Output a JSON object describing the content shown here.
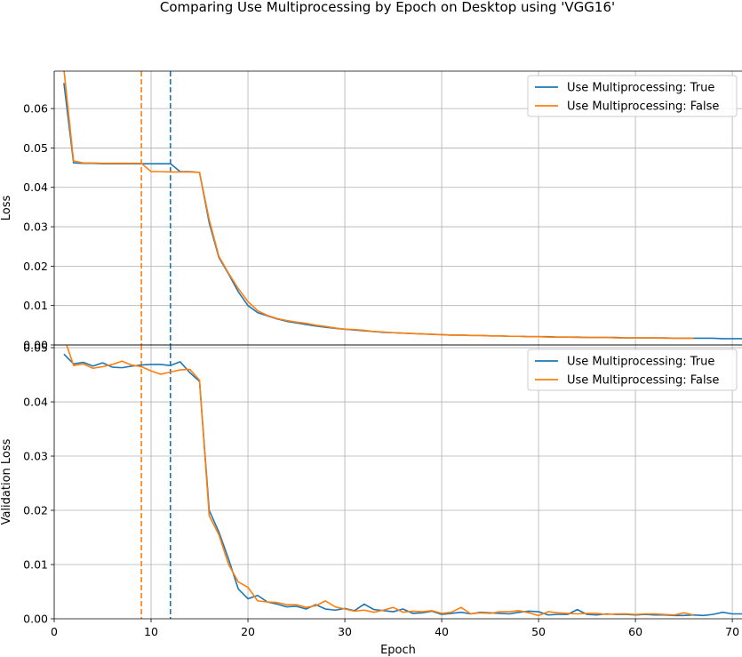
{
  "chart_data": {
    "type": "line",
    "title": "Comparing Use Multiprocessing by Epoch on Desktop using 'VGG16'",
    "xlabel": "Epoch",
    "xlim": [
      0,
      71
    ],
    "xticks": [
      0,
      10,
      20,
      30,
      40,
      50,
      60,
      70
    ],
    "grid": true,
    "colors": {
      "true": "#1f77b4",
      "false": "#ff7f0e"
    },
    "vlines": [
      {
        "x": 12,
        "series": "Use Multiprocessing: True",
        "style": "dashed",
        "color": "#1f77b4"
      },
      {
        "x": 9,
        "series": "Use Multiprocessing: False",
        "style": "dashed",
        "color": "#ff7f0e"
      }
    ],
    "panels": [
      {
        "ylabel": "Loss",
        "ylim": [
          0,
          0.0695
        ],
        "yticks": [
          0.0,
          0.01,
          0.02,
          0.03,
          0.04,
          0.05,
          0.06
        ],
        "legend_position": "top-right",
        "series": [
          {
            "name": "Use Multiprocessing: True",
            "x": [
              1,
              2,
              3,
              4,
              5,
              6,
              7,
              8,
              9,
              10,
              11,
              12,
              13,
              14,
              15,
              16,
              17,
              18,
              19,
              20,
              21,
              22,
              23,
              24,
              25,
              26,
              27,
              28,
              29,
              30,
              31,
              32,
              33,
              34,
              35,
              36,
              37,
              38,
              39,
              40,
              41,
              42,
              43,
              44,
              45,
              46,
              47,
              48,
              49,
              50,
              51,
              52,
              53,
              54,
              55,
              56,
              57,
              58,
              59,
              60,
              61,
              62,
              63,
              64,
              65,
              66,
              67,
              68,
              69,
              70,
              71
            ],
            "y": [
              0.0665,
              0.0462,
              0.0461,
              0.0461,
              0.046,
              0.046,
              0.046,
              0.046,
              0.046,
              0.046,
              0.046,
              0.046,
              0.044,
              0.044,
              0.0438,
              0.031,
              0.0222,
              0.018,
              0.0135,
              0.01,
              0.0082,
              0.0074,
              0.0066,
              0.006,
              0.0056,
              0.0052,
              0.0048,
              0.0045,
              0.0042,
              0.004,
              0.0038,
              0.0036,
              0.0034,
              0.0032,
              0.0031,
              0.003,
              0.0029,
              0.0028,
              0.0027,
              0.0026,
              0.0025,
              0.0025,
              0.0024,
              0.0024,
              0.0023,
              0.0023,
              0.0022,
              0.0022,
              0.0021,
              0.0021,
              0.0021,
              0.002,
              0.002,
              0.002,
              0.0019,
              0.0019,
              0.0019,
              0.0019,
              0.0018,
              0.0018,
              0.0018,
              0.0018,
              0.0018,
              0.0017,
              0.0017,
              0.0017,
              0.0017,
              0.0017,
              0.0016,
              0.0016,
              0.0016
            ]
          },
          {
            "name": "Use Multiprocessing: False",
            "x": [
              1,
              2,
              3,
              4,
              5,
              6,
              7,
              8,
              9,
              10,
              11,
              12,
              13,
              14,
              15,
              16,
              17,
              18,
              19,
              20,
              21,
              22,
              23,
              24,
              25,
              26,
              27,
              28,
              29,
              30,
              31,
              32,
              33,
              34,
              35,
              36,
              37,
              38,
              39,
              40,
              41,
              42,
              43,
              44,
              45,
              46,
              47,
              48,
              49,
              50,
              51,
              52,
              53,
              54,
              55,
              56,
              57,
              58,
              59,
              60,
              61,
              62,
              63,
              64,
              65,
              66
            ],
            "y": [
              0.07,
              0.0467,
              0.0462,
              0.0462,
              0.0461,
              0.0461,
              0.0461,
              0.0461,
              0.0461,
              0.044,
              0.044,
              0.0439,
              0.0439,
              0.0439,
              0.0438,
              0.0318,
              0.0225,
              0.0182,
              0.0143,
              0.011,
              0.0087,
              0.0075,
              0.0067,
              0.0062,
              0.0058,
              0.0055,
              0.005,
              0.0047,
              0.0043,
              0.004,
              0.0039,
              0.0037,
              0.0034,
              0.0033,
              0.0031,
              0.003,
              0.0029,
              0.0028,
              0.0027,
              0.0026,
              0.0025,
              0.0025,
              0.0024,
              0.0024,
              0.0023,
              0.0023,
              0.0022,
              0.0022,
              0.0021,
              0.0021,
              0.002,
              0.002,
              0.002,
              0.0019,
              0.0019,
              0.0019,
              0.0019,
              0.0018,
              0.0018,
              0.0018,
              0.0018,
              0.0018,
              0.0017,
              0.0017,
              0.0017,
              0.0017
            ]
          }
        ]
      },
      {
        "ylabel": "Validation Loss",
        "ylim": [
          0,
          0.0505
        ],
        "yticks": [
          0.0,
          0.01,
          0.02,
          0.03,
          0.04,
          0.05
        ],
        "legend_position": "top-right",
        "series": [
          {
            "name": "Use Multiprocessing: True",
            "x": [
              1,
              2,
              3,
              4,
              5,
              6,
              7,
              8,
              9,
              10,
              11,
              12,
              13,
              14,
              15,
              16,
              17,
              18,
              19,
              20,
              21,
              22,
              23,
              24,
              25,
              26,
              27,
              28,
              29,
              30,
              31,
              32,
              33,
              34,
              35,
              36,
              37,
              38,
              39,
              40,
              41,
              42,
              43,
              44,
              45,
              46,
              47,
              48,
              49,
              50,
              51,
              52,
              53,
              54,
              55,
              56,
              57,
              58,
              59,
              60,
              61,
              62,
              63,
              64,
              65,
              66,
              67,
              68,
              69,
              70,
              71
            ],
            "y": [
              0.0488,
              0.047,
              0.0473,
              0.0466,
              0.0472,
              0.0464,
              0.0463,
              0.0466,
              0.0468,
              0.0469,
              0.0469,
              0.0467,
              0.0474,
              0.0454,
              0.0438,
              0.02,
              0.016,
              0.011,
              0.0055,
              0.0037,
              0.0043,
              0.0031,
              0.0027,
              0.0022,
              0.0023,
              0.0018,
              0.0026,
              0.0018,
              0.0016,
              0.0019,
              0.0015,
              0.0027,
              0.0017,
              0.0015,
              0.0013,
              0.0018,
              0.001,
              0.0011,
              0.0014,
              0.0008,
              0.001,
              0.0012,
              0.0009,
              0.0012,
              0.0011,
              0.001,
              0.0009,
              0.0012,
              0.0014,
              0.0013,
              0.0007,
              0.0008,
              0.0008,
              0.0017,
              0.0008,
              0.0007,
              0.0009,
              0.0008,
              0.0008,
              0.0007,
              0.0008,
              0.0007,
              0.0007,
              0.0006,
              0.0006,
              0.0007,
              0.0006,
              0.0008,
              0.0012,
              0.0009,
              0.0009
            ]
          },
          {
            "name": "Use Multiprocessing: False",
            "x": [
              1,
              2,
              3,
              4,
              5,
              6,
              7,
              8,
              9,
              10,
              11,
              12,
              13,
              14,
              15,
              16,
              17,
              18,
              19,
              20,
              21,
              22,
              23,
              24,
              25,
              26,
              27,
              28,
              29,
              30,
              31,
              32,
              33,
              34,
              35,
              36,
              37,
              38,
              39,
              40,
              41,
              42,
              43,
              44,
              45,
              46,
              47,
              48,
              49,
              50,
              51,
              52,
              53,
              54,
              55,
              56,
              57,
              58,
              59,
              60,
              61,
              62,
              63,
              64,
              65,
              66
            ],
            "y": [
              0.052,
              0.0467,
              0.047,
              0.0462,
              0.0465,
              0.0469,
              0.0475,
              0.0468,
              0.0465,
              0.0457,
              0.0451,
              0.0455,
              0.0459,
              0.046,
              0.044,
              0.019,
              0.0155,
              0.01,
              0.0068,
              0.0058,
              0.0033,
              0.0031,
              0.003,
              0.0026,
              0.0026,
              0.0021,
              0.0024,
              0.0033,
              0.0022,
              0.0018,
              0.0014,
              0.0016,
              0.0012,
              0.0016,
              0.0021,
              0.0012,
              0.0014,
              0.0013,
              0.0015,
              0.001,
              0.0012,
              0.0021,
              0.0009,
              0.0011,
              0.001,
              0.0013,
              0.0013,
              0.0015,
              0.0011,
              0.0006,
              0.0013,
              0.0011,
              0.001,
              0.0009,
              0.001,
              0.001,
              0.0008,
              0.0009,
              0.0009,
              0.0008,
              0.0009,
              0.0009,
              0.0008,
              0.0007,
              0.0011,
              0.0007
            ]
          }
        ]
      }
    ]
  }
}
